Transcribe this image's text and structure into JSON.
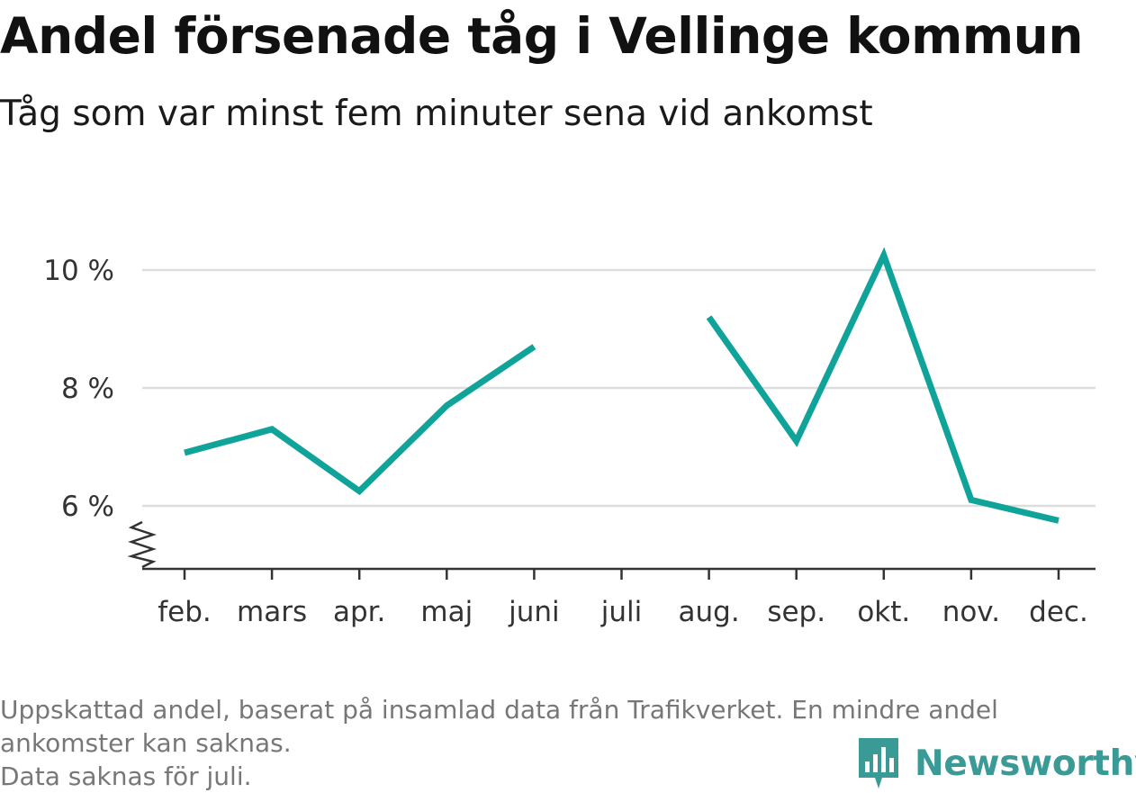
{
  "title": "Andel försenade tåg i Vellinge kommun",
  "subtitle": "Tåg som var minst fem minuter sena vid ankomst",
  "footnote": {
    "line1": "Uppskattad andel, baserat på insamlad data från Trafikverket. En mindre andel",
    "line2": "ankomster kan saknas.",
    "line3": "Data saknas för juli."
  },
  "brand": {
    "name": "Newsworthy"
  },
  "colors": {
    "line": "#10a39a",
    "grid": "#dddddd",
    "axis": "#333333",
    "brand": "#3a9a96"
  },
  "chart_data": {
    "type": "line",
    "categories": [
      "feb.",
      "mars",
      "apr.",
      "maj",
      "juni",
      "juli",
      "aug.",
      "sep.",
      "okt.",
      "nov.",
      "dec."
    ],
    "series": [
      {
        "values": [
          6.9,
          7.3,
          6.25,
          7.7,
          8.7,
          null,
          9.2,
          7.1,
          10.25,
          6.1,
          5.75
        ]
      }
    ],
    "yticks": [
      6,
      8,
      10
    ],
    "ytick_labels": [
      "6 %",
      "8 %",
      "10 %"
    ],
    "ylim": [
      4.9,
      10.5
    ],
    "axis_break": true,
    "grid": true
  }
}
